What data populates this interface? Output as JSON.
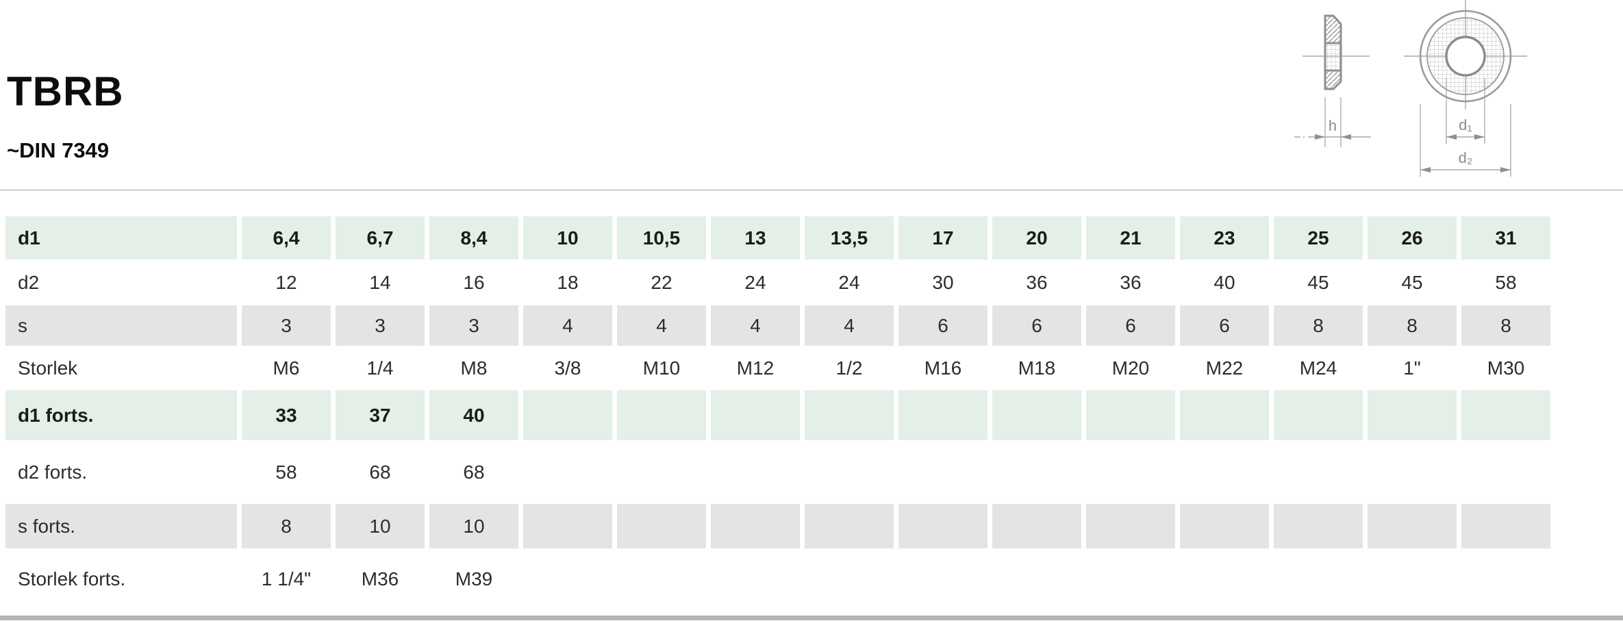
{
  "page": {
    "title": "TBRB",
    "standard": "~DIN 7349"
  },
  "drawing": {
    "labels": {
      "thickness": "h",
      "inner_diameter": "d₁",
      "outer_diameter": "d₂"
    },
    "line_color": "#999999"
  },
  "colors": {
    "header_row_green": "#e3efe7",
    "alt_row_gray": "#e4e4e4",
    "divider_gray": "#dadada",
    "bottom_bar_gray": "#b4b4b4",
    "text_dark": "#1b1b1b"
  },
  "table": {
    "rows": [
      {
        "label": "d1",
        "kind": "green",
        "bold": true,
        "values": [
          "6,4",
          "6,7",
          "8,4",
          "10",
          "10,5",
          "13",
          "13,5",
          "17",
          "20",
          "21",
          "23",
          "25",
          "26",
          "31"
        ]
      },
      {
        "label": "d2",
        "kind": "white",
        "bold": false,
        "values": [
          "12",
          "14",
          "16",
          "18",
          "22",
          "24",
          "24",
          "30",
          "36",
          "36",
          "40",
          "45",
          "45",
          "58"
        ]
      },
      {
        "label": "s",
        "kind": "gray",
        "bold": false,
        "values": [
          "3",
          "3",
          "3",
          "4",
          "4",
          "4",
          "4",
          "6",
          "6",
          "6",
          "6",
          "8",
          "8",
          "8"
        ]
      },
      {
        "label": "Storlek",
        "kind": "white",
        "bold": false,
        "values": [
          "M6",
          "1/4",
          "M8",
          "3/8",
          "M10",
          "M12",
          "1/2",
          "M16",
          "M18",
          "M20",
          "M22",
          "M24",
          "1\"",
          "M30"
        ]
      },
      {
        "label": "d1 forts.",
        "kind": "green",
        "bold": true,
        "values": [
          "33",
          "37",
          "40",
          "",
          "",
          "",
          "",
          "",
          "",
          "",
          "",
          "",
          "",
          ""
        ]
      },
      {
        "label": "d2 forts.",
        "kind": "white",
        "bold": false,
        "values": [
          "58",
          "68",
          "68",
          "",
          "",
          "",
          "",
          "",
          "",
          "",
          "",
          "",
          "",
          ""
        ]
      },
      {
        "label": "s forts.",
        "kind": "gray",
        "bold": false,
        "values": [
          "8",
          "10",
          "10",
          "",
          "",
          "",
          "",
          "",
          "",
          "",
          "",
          "",
          "",
          ""
        ]
      },
      {
        "label": "Storlek forts.",
        "kind": "white",
        "bold": false,
        "values": [
          "1 1/4\"",
          "M36",
          "M39",
          "",
          "",
          "",
          "",
          "",
          "",
          "",
          "",
          "",
          "",
          ""
        ]
      }
    ]
  }
}
